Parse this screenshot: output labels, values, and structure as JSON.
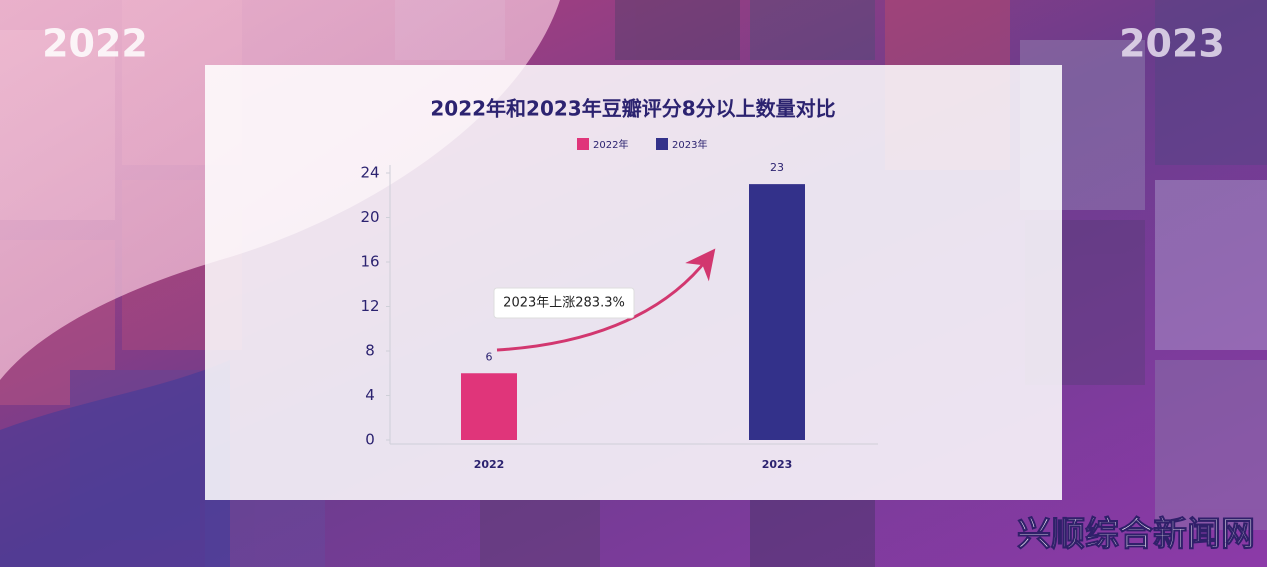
{
  "poster": {
    "left_year": "2022",
    "right_year": "2023",
    "watermark": "兴顺综合新闻网"
  },
  "chart_data": {
    "type": "bar",
    "title": "2022年和2023年豆瓣评分8分以上数量对比",
    "categories": [
      "2022",
      "2023"
    ],
    "series": [
      {
        "name": "2022年",
        "color": "#e0357a",
        "values": [
          6,
          null
        ]
      },
      {
        "name": "2023年",
        "color": "#33318a",
        "values": [
          null,
          23
        ]
      }
    ],
    "ylim": [
      0,
      24
    ],
    "yticks": [
      0,
      4,
      8,
      12,
      16,
      20,
      24
    ],
    "annotation": "2023年上涨283.3%",
    "grid": false
  }
}
